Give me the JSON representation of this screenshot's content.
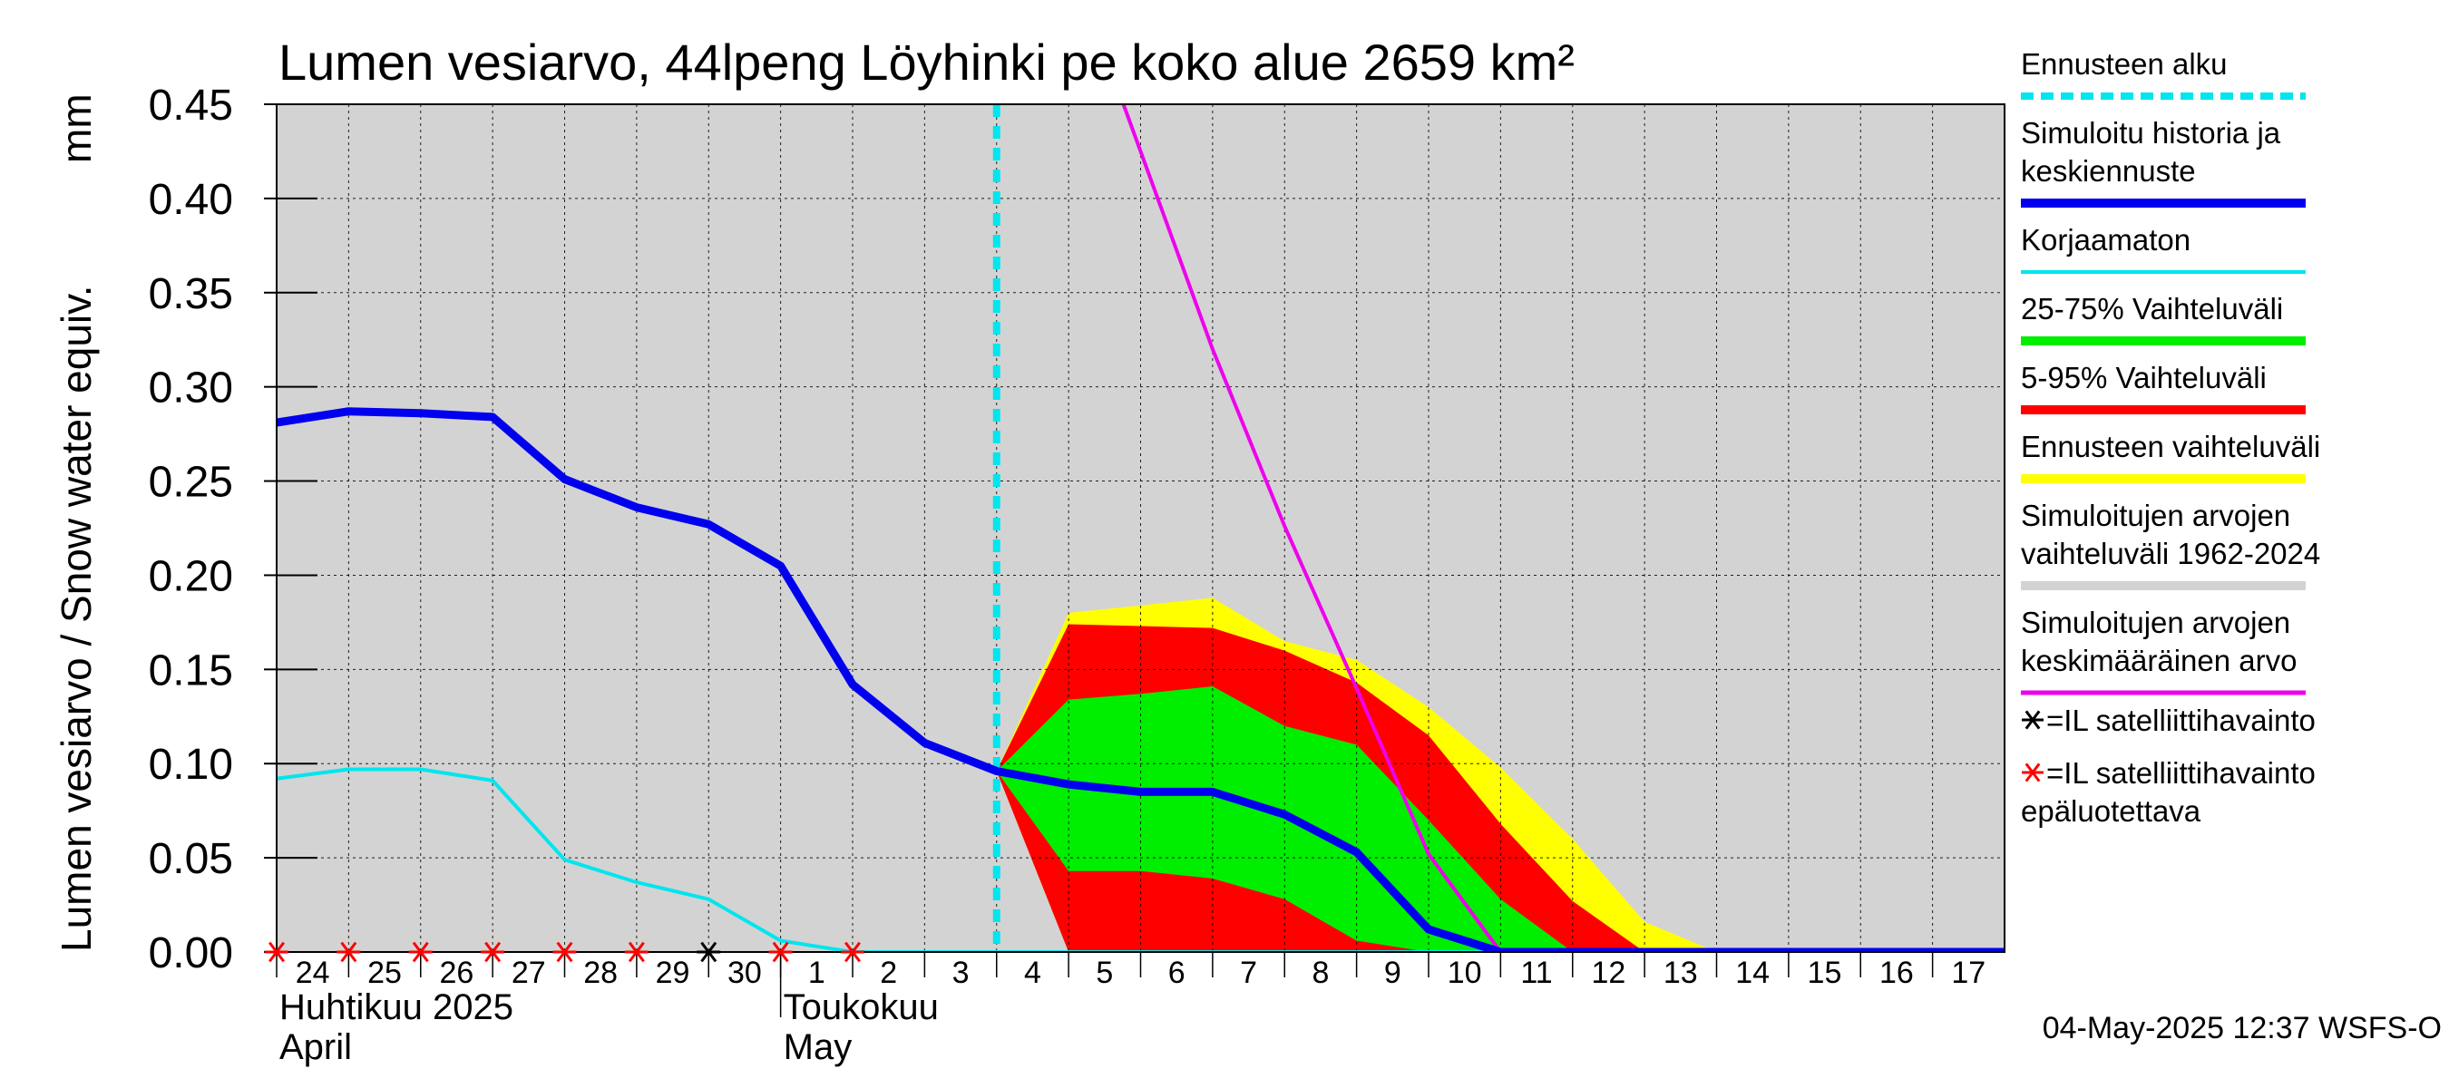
{
  "chart_data": {
    "type": "area",
    "title": "Lumen vesiarvo, 44lpeng Löyhinki pe koko alue 2659 km²",
    "ylabel": "Lumen vesiarvo / Snow water equiv.",
    "yunit": "mm",
    "ylim": [
      0,
      0.45
    ],
    "yticks": [
      "0.00",
      "0.05",
      "0.10",
      "0.15",
      "0.20",
      "0.25",
      "0.30",
      "0.35",
      "0.40",
      "0.45"
    ],
    "xlim": [
      "2025-04-24",
      "2025-05-18"
    ],
    "xtick_labels": [
      "24",
      "25",
      "26",
      "27",
      "28",
      "29",
      "30",
      "1",
      "2",
      "3",
      "4",
      "5",
      "6",
      "7",
      "8",
      "9",
      "10",
      "11",
      "12",
      "13",
      "14",
      "15",
      "16",
      "17"
    ],
    "month_labels": [
      {
        "fi": "Huhtikuu  2025",
        "en": "April",
        "date": "2025-04-24"
      },
      {
        "fi": "Toukokuu",
        "en": "May",
        "date": "2025-05-01"
      }
    ],
    "grid": true,
    "background_color": "#d3d3d3",
    "forecast_start": "2025-05-04",
    "series": {
      "simulated_history": {
        "color": "#0000ee",
        "points": [
          [
            "2025-04-24",
            0.281
          ],
          [
            "2025-04-25",
            0.287
          ],
          [
            "2025-04-26",
            0.286
          ],
          [
            "2025-04-27",
            0.284
          ],
          [
            "2025-04-28",
            0.251
          ],
          [
            "2025-04-29",
            0.236
          ],
          [
            "2025-04-30",
            0.227
          ],
          [
            "2025-05-01",
            0.205
          ],
          [
            "2025-05-02",
            0.142
          ],
          [
            "2025-05-03",
            0.111
          ],
          [
            "2025-05-04",
            0.096
          ],
          [
            "2025-05-05",
            0.089
          ],
          [
            "2025-05-06",
            0.085
          ],
          [
            "2025-05-07",
            0.085
          ],
          [
            "2025-05-08",
            0.073
          ],
          [
            "2025-05-09",
            0.053
          ],
          [
            "2025-05-10",
            0.012
          ],
          [
            "2025-05-11",
            0.0
          ],
          [
            "2025-05-18",
            0.0
          ]
        ]
      },
      "uncorrected": {
        "color": "#00e5ee",
        "points": [
          [
            "2025-04-24",
            0.092
          ],
          [
            "2025-04-25",
            0.097
          ],
          [
            "2025-04-26",
            0.097
          ],
          [
            "2025-04-27",
            0.091
          ],
          [
            "2025-04-28",
            0.049
          ],
          [
            "2025-04-29",
            0.037
          ],
          [
            "2025-04-30",
            0.028
          ],
          [
            "2025-05-01",
            0.006
          ],
          [
            "2025-05-02",
            0.0
          ],
          [
            "2025-05-18",
            0.0
          ]
        ]
      },
      "mean_simulated": {
        "color": "#ee00ee",
        "points": [
          [
            "2025-05-05",
            0.53
          ],
          [
            "2025-05-07",
            0.32
          ],
          [
            "2025-05-08",
            0.226
          ],
          [
            "2025-05-09",
            0.14
          ],
          [
            "2025-05-10",
            0.052
          ],
          [
            "2025-05-11",
            0.0
          ],
          [
            "2025-05-18",
            0.0
          ]
        ]
      }
    },
    "bands": {
      "forecast_range": {
        "color": "#ffff00",
        "upper": [
          [
            "2025-05-04",
            0.096
          ],
          [
            "2025-05-05",
            0.18
          ],
          [
            "2025-05-06",
            0.184
          ],
          [
            "2025-05-07",
            0.188
          ],
          [
            "2025-05-08",
            0.165
          ],
          [
            "2025-05-09",
            0.155
          ],
          [
            "2025-05-10",
            0.13
          ],
          [
            "2025-05-11",
            0.098
          ],
          [
            "2025-05-12",
            0.06
          ],
          [
            "2025-05-13",
            0.016
          ],
          [
            "2025-05-14",
            0.0
          ],
          [
            "2025-05-18",
            0.0
          ]
        ],
        "lower": [
          [
            "2025-05-04",
            0.096
          ],
          [
            "2025-05-05",
            0.0
          ],
          [
            "2025-05-18",
            0.0
          ]
        ]
      },
      "p5_95": {
        "color": "#ff0000",
        "upper": [
          [
            "2025-05-04",
            0.096
          ],
          [
            "2025-05-05",
            0.174
          ],
          [
            "2025-05-06",
            0.173
          ],
          [
            "2025-05-07",
            0.172
          ],
          [
            "2025-05-08",
            0.16
          ],
          [
            "2025-05-09",
            0.143
          ],
          [
            "2025-05-10",
            0.115
          ],
          [
            "2025-05-11",
            0.068
          ],
          [
            "2025-05-12",
            0.027
          ],
          [
            "2025-05-13",
            0.0
          ],
          [
            "2025-05-18",
            0.0
          ]
        ],
        "lower": [
          [
            "2025-05-04",
            0.096
          ],
          [
            "2025-05-05",
            0.0
          ],
          [
            "2025-05-18",
            0.0
          ]
        ]
      },
      "p25_75": {
        "color": "#00ee00",
        "upper": [
          [
            "2025-05-04",
            0.096
          ],
          [
            "2025-05-05",
            0.134
          ],
          [
            "2025-05-06",
            0.137
          ],
          [
            "2025-05-07",
            0.141
          ],
          [
            "2025-05-08",
            0.12
          ],
          [
            "2025-05-09",
            0.11
          ],
          [
            "2025-05-10",
            0.07
          ],
          [
            "2025-05-11",
            0.028
          ],
          [
            "2025-05-12",
            0.0
          ],
          [
            "2025-05-18",
            0.0
          ]
        ],
        "lower": [
          [
            "2025-05-04",
            0.096
          ],
          [
            "2025-05-05",
            0.043
          ],
          [
            "2025-05-06",
            0.043
          ],
          [
            "2025-05-07",
            0.039
          ],
          [
            "2025-05-08",
            0.028
          ],
          [
            "2025-05-09",
            0.006
          ],
          [
            "2025-05-10",
            0.0
          ],
          [
            "2025-05-18",
            0.0
          ]
        ]
      }
    },
    "satellite_observations": [
      {
        "date": "2025-04-24",
        "value": 0.0,
        "reliable": false
      },
      {
        "date": "2025-04-25",
        "value": 0.0,
        "reliable": false
      },
      {
        "date": "2025-04-26",
        "value": 0.0,
        "reliable": false
      },
      {
        "date": "2025-04-27",
        "value": 0.0,
        "reliable": false
      },
      {
        "date": "2025-04-28",
        "value": 0.0,
        "reliable": false
      },
      {
        "date": "2025-04-29",
        "value": 0.0,
        "reliable": false
      },
      {
        "date": "2025-04-30",
        "value": 0.0,
        "reliable": true
      },
      {
        "date": "2025-05-01",
        "value": 0.0,
        "reliable": false
      },
      {
        "date": "2025-05-02",
        "value": 0.0,
        "reliable": false
      }
    ],
    "legend": {
      "position": "right",
      "items": [
        {
          "lines": [
            "Ennusteen alku"
          ],
          "color": "#00e5ee",
          "style": "dashed"
        },
        {
          "lines": [
            "Simuloitu historia ja",
            "keskiennuste"
          ],
          "color": "#0000ee",
          "style": "thick"
        },
        {
          "lines": [
            "Korjaamaton"
          ],
          "color": "#00e5ee",
          "style": "thin"
        },
        {
          "lines": [
            "25-75% Vaihteluväli"
          ],
          "color": "#00ee00",
          "style": "thick"
        },
        {
          "lines": [
            "5-95% Vaihteluväli"
          ],
          "color": "#ff0000",
          "style": "thick"
        },
        {
          "lines": [
            "Ennusteen vaihteluväli"
          ],
          "color": "#ffff00",
          "style": "thick"
        },
        {
          "lines": [
            "Simuloitujen arvojen",
            "vaihteluväli 1962-2024"
          ],
          "color": "#d3d3d3",
          "style": "thick"
        },
        {
          "lines": [
            "Simuloitujen arvojen",
            "keskimääräinen arvo"
          ],
          "color": "#ee00ee",
          "style": "medium"
        }
      ],
      "markers": [
        {
          "lines": [
            "=IL satelliittihavainto"
          ],
          "color": "#000000"
        },
        {
          "lines": [
            "=IL satelliittihavainto",
            "epäluotettava"
          ],
          "color": "#ff0000"
        }
      ]
    },
    "footer": "04-May-2025 12:37 WSFS-O"
  }
}
